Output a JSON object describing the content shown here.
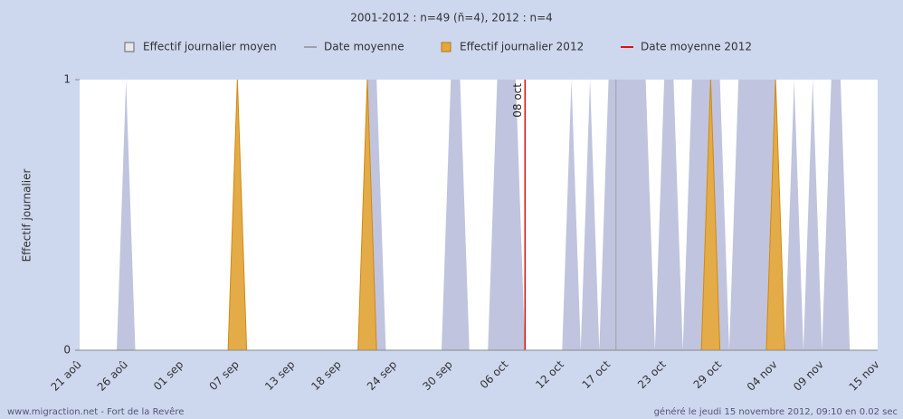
{
  "chart_data": {
    "type": "area",
    "title": "2001-2012 : n=49 (ñ=4), 2012 : n=4",
    "y_label": "Effectif journalier",
    "categories": [
      "21 aoû",
      null,
      null,
      null,
      null,
      "26 aoû",
      null,
      null,
      null,
      null,
      null,
      "01 sep",
      null,
      null,
      null,
      null,
      null,
      "07 sep",
      null,
      null,
      null,
      null,
      null,
      "13 sep",
      null,
      null,
      null,
      null,
      "18 sep",
      null,
      null,
      null,
      null,
      null,
      "24 sep",
      null,
      null,
      null,
      null,
      null,
      "30 sep",
      null,
      null,
      null,
      null,
      null,
      "06 oct",
      null,
      null,
      null,
      null,
      null,
      "12 oct",
      null,
      null,
      null,
      null,
      "17 oct",
      null,
      null,
      null,
      null,
      null,
      "23 oct",
      null,
      null,
      null,
      null,
      null,
      "29 oct",
      null,
      null,
      null,
      null,
      null,
      "04 nov",
      null,
      null,
      null,
      null,
      "09 nov",
      null,
      null,
      null,
      null,
      null,
      "15 nov"
    ],
    "series": [
      {
        "name": "Effectif journalier moyen",
        "color": "#c0c4de",
        "legend": "square-outline",
        "values": [
          0,
          0,
          0,
          0,
          0,
          1,
          0,
          0,
          0,
          0,
          0,
          0,
          0,
          0,
          0,
          0,
          0,
          1,
          0,
          0,
          0,
          0,
          0,
          0,
          0,
          0,
          0,
          0,
          0,
          0,
          0,
          1,
          1,
          0,
          0,
          0,
          0,
          0,
          0,
          0,
          1,
          1,
          0,
          0,
          0,
          1,
          1,
          1,
          0,
          0,
          0,
          0,
          0,
          1,
          0,
          1,
          0,
          1,
          1,
          1,
          1,
          1,
          0,
          1,
          1,
          0,
          1,
          1,
          1,
          1,
          0,
          1,
          1,
          1,
          1,
          1,
          0,
          1,
          0,
          1,
          0,
          1,
          1,
          0,
          0,
          0,
          0
        ]
      },
      {
        "name": "Effectif journalier 2012",
        "color": "#e8a838",
        "legend": "square",
        "values": [
          0,
          0,
          0,
          0,
          0,
          0,
          0,
          0,
          0,
          0,
          0,
          0,
          0,
          0,
          0,
          0,
          0,
          1,
          0,
          0,
          0,
          0,
          0,
          0,
          0,
          0,
          0,
          0,
          0,
          0,
          0,
          1,
          0,
          0,
          0,
          0,
          0,
          0,
          0,
          0,
          0,
          0,
          0,
          0,
          0,
          0,
          0,
          0,
          0,
          0,
          0,
          0,
          0,
          0,
          0,
          0,
          0,
          0,
          0,
          0,
          0,
          0,
          0,
          0,
          0,
          0,
          0,
          0,
          1,
          0,
          0,
          0,
          0,
          0,
          0,
          1,
          0,
          0,
          0,
          0,
          0,
          0,
          0,
          0,
          0,
          0,
          0
        ]
      }
    ],
    "mean_lines": [
      {
        "name": "Date moyenne",
        "color": "#a0a0a8",
        "index": 57.8
      },
      {
        "name": "Date moyenne 2012",
        "color": "#dd1111",
        "index": 48,
        "label": "08 oct"
      }
    ],
    "ylim": [
      0,
      1
    ],
    "yticks": [
      0,
      1
    ],
    "footer_left": "www.migraction.net - Fort de la Revêre",
    "footer_right": "généré le jeudi 15 novembre 2012, 09:10 en 0.02 sec"
  }
}
